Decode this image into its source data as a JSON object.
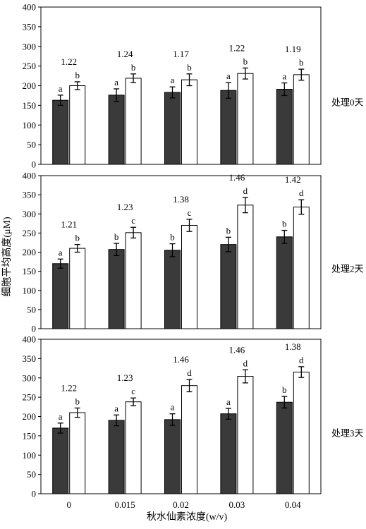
{
  "figure": {
    "ylabel": "细胞平均高度(μM)",
    "xlabel": "秋水仙素浓度(w/v)",
    "categories": [
      "0",
      "0.015",
      "0.02",
      "0.03",
      "0.04"
    ],
    "colors": {
      "dark_bar": "#3a3a3a",
      "light_bar": "#ffffff",
      "outline": "#000000"
    }
  },
  "chart_data": [
    {
      "type": "bar",
      "panel_label": "处理0天",
      "categories": [
        "0",
        "0.015",
        "0.02",
        "0.03",
        "0.04"
      ],
      "ylim": [
        0,
        400
      ],
      "yticks": [
        0,
        50,
        100,
        150,
        200,
        250,
        300,
        350,
        400
      ],
      "series": [
        {
          "values": [
            163,
            176,
            183,
            188,
            191
          ],
          "errors": [
            13,
            16,
            14,
            20,
            16
          ],
          "letters": [
            "a",
            "a",
            "a",
            "a",
            "a"
          ]
        },
        {
          "values": [
            200,
            219,
            215,
            231,
            228
          ],
          "errors": [
            10,
            11,
            15,
            14,
            14
          ],
          "letters": [
            "b",
            "b",
            "b",
            "b",
            "b"
          ]
        }
      ],
      "ratios": [
        "1.22",
        "1.24",
        "1.17",
        "1.22",
        "1.19"
      ]
    },
    {
      "type": "bar",
      "panel_label": "处理2天",
      "categories": [
        "0",
        "0.015",
        "0.02",
        "0.03",
        "0.04"
      ],
      "ylim": [
        0,
        400
      ],
      "yticks": [
        0,
        50,
        100,
        150,
        200,
        250,
        300,
        350,
        400
      ],
      "series": [
        {
          "values": [
            170,
            207,
            205,
            220,
            240
          ],
          "errors": [
            12,
            16,
            17,
            19,
            17
          ],
          "letters": [
            "a",
            "b",
            "b",
            "b",
            "b"
          ]
        },
        {
          "values": [
            210,
            251,
            270,
            323,
            318
          ],
          "errors": [
            10,
            14,
            16,
            20,
            19
          ],
          "letters": [
            "b",
            "c",
            "c",
            "d",
            "d"
          ]
        }
      ],
      "ratios": [
        "1.21",
        "1.23",
        "1.38",
        "1.46",
        "1.42"
      ]
    },
    {
      "type": "bar",
      "panel_label": "处理3天",
      "categories": [
        "0",
        "0.015",
        "0.02",
        "0.03",
        "0.04"
      ],
      "ylim": [
        0,
        400
      ],
      "yticks": [
        0,
        50,
        100,
        150,
        200,
        250,
        300,
        350,
        400
      ],
      "series": [
        {
          "values": [
            170,
            190,
            192,
            207,
            237
          ],
          "errors": [
            13,
            14,
            15,
            14,
            15
          ],
          "letters": [
            "a",
            "a",
            "a",
            "a",
            "b"
          ]
        },
        {
          "values": [
            210,
            238,
            280,
            304,
            315
          ],
          "errors": [
            12,
            10,
            16,
            17,
            14
          ],
          "letters": [
            "b",
            "c",
            "d",
            "d",
            "d"
          ]
        }
      ],
      "ratios": [
        "1.22",
        "1.23",
        "1.46",
        "1.46",
        "1.38"
      ]
    }
  ]
}
